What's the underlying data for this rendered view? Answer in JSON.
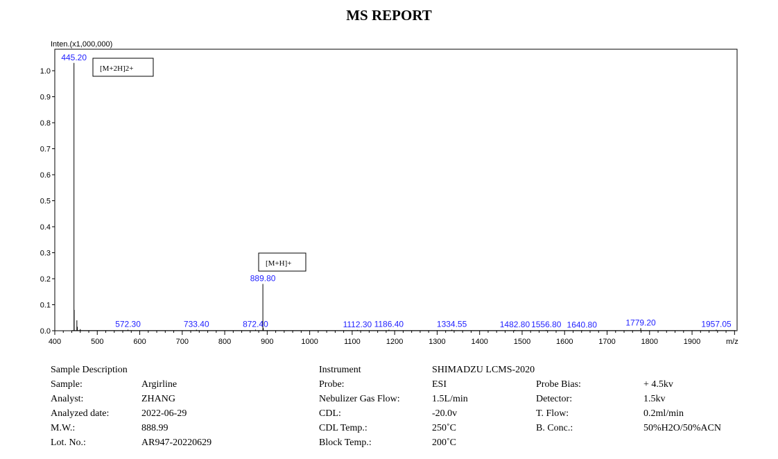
{
  "report": {
    "title": "MS REPORT"
  },
  "chart_data": {
    "type": "line",
    "ylabel": "Inten.(x1,000,000)",
    "xlabel": "m/z",
    "xlim": [
      400,
      2000
    ],
    "ylim": [
      0,
      1.0
    ],
    "xticks": [
      400,
      500,
      600,
      700,
      800,
      900,
      1000,
      1100,
      1200,
      1300,
      1400,
      1500,
      1600,
      1700,
      1800,
      1900
    ],
    "xtick_labels": [
      "400",
      "500",
      "600",
      "700",
      "800",
      "900",
      "1000",
      "1100",
      "1200",
      "1300",
      "1400",
      "1500",
      "1600",
      "1700",
      "1800",
      "1900"
    ],
    "yticks": [
      0.0,
      0.1,
      0.2,
      0.3,
      0.4,
      0.5,
      0.6,
      0.7,
      0.8,
      0.9,
      1.0
    ],
    "ytick_labels": [
      "0.0",
      "0.1",
      "0.2",
      "0.3",
      "0.4",
      "0.5",
      "0.6",
      "0.7",
      "0.8",
      "0.9",
      "1.0"
    ],
    "peaks": [
      {
        "mz": 445.2,
        "intensity": 1.03,
        "label": "445.20"
      },
      {
        "mz": 445.7,
        "intensity": 0.08
      },
      {
        "mz": 452.0,
        "intensity": 0.04
      },
      {
        "mz": 453.2,
        "intensity": 0.015
      },
      {
        "mz": 460.0,
        "intensity": 0.006
      },
      {
        "mz": 572.3,
        "intensity": 0.004,
        "label": "572.30"
      },
      {
        "mz": 733.4,
        "intensity": 0.004,
        "label": "733.40"
      },
      {
        "mz": 872.4,
        "intensity": 0.004,
        "label": "872.40"
      },
      {
        "mz": 889.8,
        "intensity": 0.18,
        "label": "889.80"
      },
      {
        "mz": 890.8,
        "intensity": 0.01
      },
      {
        "mz": 1112.3,
        "intensity": 0.003,
        "label": "1112.30"
      },
      {
        "mz": 1186.4,
        "intensity": 0.004,
        "label": "1186.40"
      },
      {
        "mz": 1334.55,
        "intensity": 0.004,
        "label": "1334.55"
      },
      {
        "mz": 1482.8,
        "intensity": 0.003,
        "label": "1482.80"
      },
      {
        "mz": 1556.8,
        "intensity": 0.003,
        "label": "1556.80"
      },
      {
        "mz": 1640.8,
        "intensity": 0.002,
        "label": "1640.80"
      },
      {
        "mz": 1779.2,
        "intensity": 0.01,
        "label": "1779.20"
      },
      {
        "mz": 1957.05,
        "intensity": 0.004,
        "label": "1957.05"
      }
    ],
    "annotations": [
      {
        "text": "[M+2H]2+",
        "peak_mz": 445.2
      },
      {
        "text": "[M+H]+",
        "peak_mz": 889.8
      }
    ],
    "grid": false,
    "legend": "none"
  },
  "sample": {
    "heading": "Sample Description",
    "fields": [
      {
        "label": "Sample:",
        "value": "Argirline"
      },
      {
        "label": "Analyst:",
        "value": "ZHANG"
      },
      {
        "label": "Analyzed date:",
        "value": "2022-06-29"
      },
      {
        "label": "M.W.:",
        "value": "888.99"
      },
      {
        "label": "Lot. No.:",
        "value": "AR947-20220629"
      }
    ]
  },
  "instrument": {
    "heading": "Instrument",
    "name": "SHIMADZU LCMS-2020",
    "fields": [
      {
        "label": "Probe:",
        "value": "ESI"
      },
      {
        "label": "Nebulizer Gas Flow:",
        "value": "1.5L/min"
      },
      {
        "label": "CDL:",
        "value": "-20.0v"
      },
      {
        "label": "CDL Temp.:",
        "value": "250˚C"
      },
      {
        "label": "Block Temp.:",
        "value": "200˚C"
      }
    ],
    "extra_fields": [
      {
        "label": "Probe Bias:",
        "value": "+ 4.5kv"
      },
      {
        "label": "Detector:",
        "value": "1.5kv"
      },
      {
        "label": "T. Flow:",
        "value": "0.2ml/min"
      },
      {
        "label": "B. Conc.:",
        "value": "50%H2O/50%ACN"
      }
    ]
  }
}
